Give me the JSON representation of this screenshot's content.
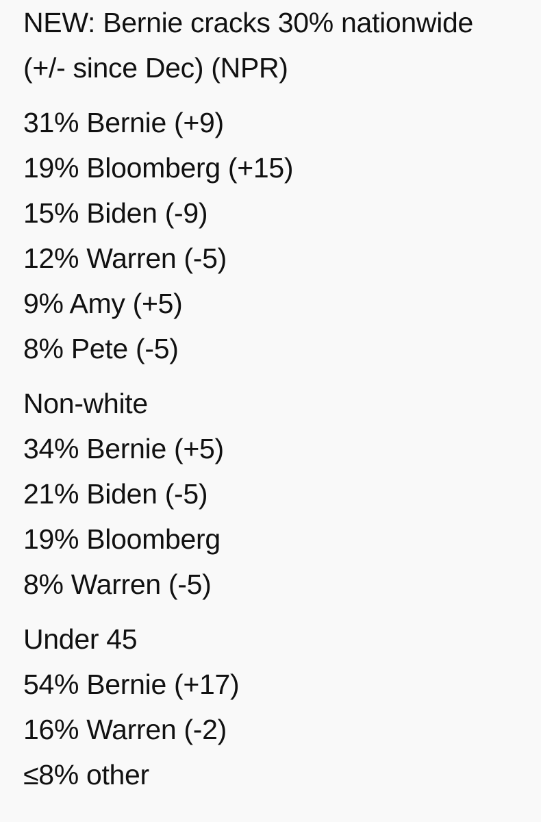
{
  "header": [
    "NEW: Bernie cracks 30% nationwide",
    "(+/- since Dec) (NPR)"
  ],
  "sections": [
    {
      "lines": [
        "31% Bernie (+9)",
        "19% Bloomberg (+15)",
        "15% Biden (-9)",
        "12% Warren (-5)",
        "9% Amy (+5)",
        "8% Pete (-5)"
      ]
    },
    {
      "title": "Non-white",
      "lines": [
        "34% Bernie (+5)",
        "21% Biden (-5)",
        "19% Bloomberg",
        "8% Warren (-5)"
      ]
    },
    {
      "title": "Under 45",
      "lines": [
        "54% Bernie (+17)",
        "16% Warren (-2)",
        "≤8% other"
      ]
    }
  ]
}
